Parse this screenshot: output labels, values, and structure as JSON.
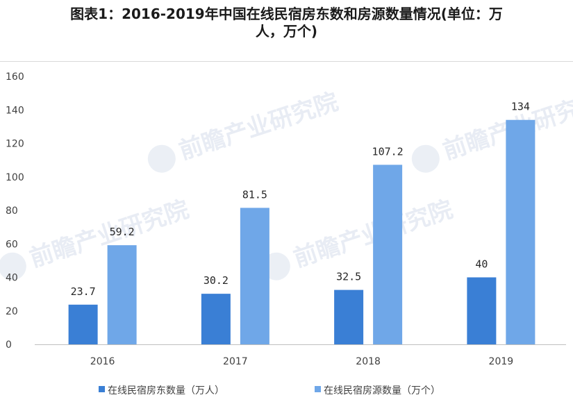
{
  "title_line1": "图表1：2016-2019年中国在线民宿房东数和房源数量情况(单位：万",
  "title_line2": "人，万个)",
  "watermark_text": "前瞻产业研究院",
  "chart_data": {
    "type": "bar",
    "categories": [
      "2016",
      "2017",
      "2018",
      "2019"
    ],
    "series": [
      {
        "name": "在线民宿房东数量（万人）",
        "values": [
          23.7,
          30.2,
          32.5,
          40
        ],
        "labels": [
          "23.7",
          "30.2",
          "32.5",
          "40"
        ],
        "color": "#3a7fd5"
      },
      {
        "name": "在线民宿房源数量（万个）",
        "values": [
          59.2,
          81.5,
          107.2,
          134
        ],
        "labels": [
          "59.2",
          "81.5",
          "107.2",
          "134"
        ],
        "color": "#6fa7e8"
      }
    ],
    "ylim": [
      0,
      160
    ],
    "yticks": [
      0,
      20,
      40,
      60,
      80,
      100,
      120,
      140,
      160
    ],
    "ytick_labels": [
      "0",
      "20",
      "40",
      "60",
      "80",
      "100",
      "120",
      "140",
      "160"
    ],
    "grid": false,
    "legend_position": "bottom"
  }
}
